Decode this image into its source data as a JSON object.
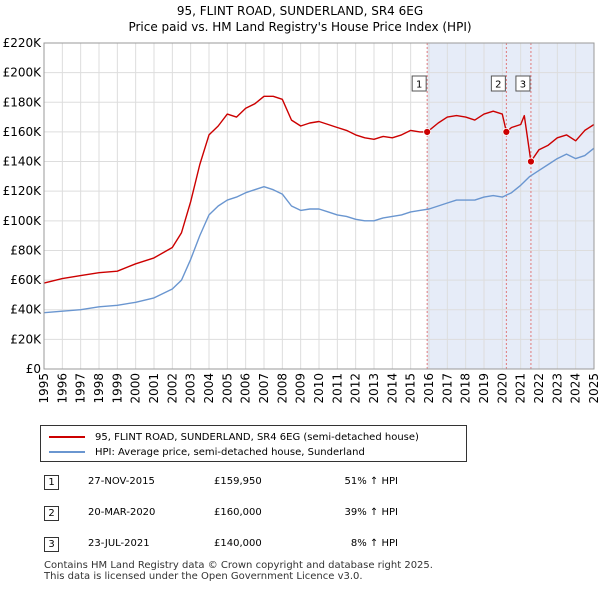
{
  "chart_data": {
    "type": "line",
    "title": "95, FLINT ROAD, SUNDERLAND, SR4 6EG",
    "subtitle": "Price paid vs. HM Land Registry's House Price Index (HPI)",
    "xlabel": "",
    "ylabel": "",
    "xlim": [
      1995,
      2025
    ],
    "ylim": [
      0,
      220000
    ],
    "y_ticks": [
      0,
      20000,
      40000,
      60000,
      80000,
      100000,
      120000,
      140000,
      160000,
      180000,
      200000,
      220000
    ],
    "y_tick_labels": [
      "£0",
      "£20K",
      "£40K",
      "£60K",
      "£80K",
      "£100K",
      "£120K",
      "£140K",
      "£160K",
      "£180K",
      "£200K",
      "£220K"
    ],
    "x_ticks": [
      1995,
      1996,
      1997,
      1998,
      1999,
      2000,
      2001,
      2002,
      2003,
      2004,
      2005,
      2006,
      2007,
      2008,
      2009,
      2010,
      2011,
      2012,
      2013,
      2014,
      2015,
      2016,
      2017,
      2018,
      2019,
      2020,
      2021,
      2022,
      2023,
      2024,
      2025
    ],
    "x_tick_labels": [
      "1995",
      "1996",
      "1997",
      "1998",
      "1999",
      "2000",
      "2001",
      "2002",
      "2003",
      "2004",
      "2005",
      "2006",
      "2007",
      "2008",
      "2009",
      "2010",
      "2011",
      "2012",
      "2013",
      "2014",
      "2015",
      "2016",
      "2017",
      "2018",
      "2019",
      "2020",
      "2021",
      "2022",
      "2023",
      "2024",
      "2025"
    ],
    "grid": true,
    "series": [
      {
        "name": "95, FLINT ROAD, SUNDERLAND, SR4 6EG (semi-detached house)",
        "color": "#cc0000",
        "x": [
          1995.0,
          1996.0,
          1997.0,
          1998.0,
          1999.0,
          2000.0,
          2001.0,
          2002.0,
          2002.5,
          2003.0,
          2003.5,
          2004.0,
          2004.5,
          2005.0,
          2005.5,
          2006.0,
          2006.5,
          2007.0,
          2007.5,
          2008.0,
          2008.5,
          2009.0,
          2009.5,
          2010.0,
          2010.5,
          2011.0,
          2011.5,
          2012.0,
          2012.5,
          2013.0,
          2013.5,
          2014.0,
          2014.5,
          2015.0,
          2015.5,
          2015.9,
          2016.5,
          2017.0,
          2017.5,
          2018.0,
          2018.5,
          2019.0,
          2019.5,
          2020.0,
          2020.22,
          2020.5,
          2021.0,
          2021.2,
          2021.56,
          2022.0,
          2022.5,
          2023.0,
          2023.5,
          2024.0,
          2024.5,
          2025.0
        ],
        "values": [
          58000,
          61000,
          63000,
          65000,
          66000,
          71000,
          75000,
          82000,
          92000,
          113000,
          138000,
          158000,
          164000,
          172000,
          170000,
          176000,
          179000,
          184000,
          184000,
          182000,
          168000,
          164000,
          166000,
          167000,
          165000,
          163000,
          161000,
          158000,
          156000,
          155000,
          157000,
          156000,
          158000,
          161000,
          160000,
          159950,
          166000,
          170000,
          171000,
          170000,
          168000,
          172000,
          174000,
          172000,
          160000,
          163000,
          165000,
          171000,
          140000,
          148000,
          151000,
          156000,
          158000,
          154000,
          161000,
          165000
        ]
      },
      {
        "name": "HPI: Average price, semi-detached house, Sunderland",
        "color": "#6a96d0",
        "x": [
          1995.0,
          1996.0,
          1997.0,
          1998.0,
          1999.0,
          2000.0,
          2001.0,
          2002.0,
          2002.5,
          2003.0,
          2003.5,
          2004.0,
          2004.5,
          2005.0,
          2005.5,
          2006.0,
          2006.5,
          2007.0,
          2007.5,
          2008.0,
          2008.5,
          2009.0,
          2009.5,
          2010.0,
          2010.5,
          2011.0,
          2011.5,
          2012.0,
          2012.5,
          2013.0,
          2013.5,
          2014.0,
          2014.5,
          2015.0,
          2015.5,
          2016.0,
          2016.5,
          2017.0,
          2017.5,
          2018.0,
          2018.5,
          2019.0,
          2019.5,
          2020.0,
          2020.5,
          2021.0,
          2021.5,
          2022.0,
          2022.5,
          2023.0,
          2023.5,
          2024.0,
          2024.5,
          2025.0
        ],
        "values": [
          38000,
          39000,
          40000,
          42000,
          43000,
          45000,
          48000,
          54000,
          60000,
          74000,
          90000,
          104000,
          110000,
          114000,
          116000,
          119000,
          121000,
          123000,
          121000,
          118000,
          110000,
          107000,
          108000,
          108000,
          106000,
          104000,
          103000,
          101000,
          100000,
          100000,
          102000,
          103000,
          104000,
          106000,
          107000,
          108000,
          110000,
          112000,
          114000,
          114000,
          114000,
          116000,
          117000,
          116000,
          119000,
          124000,
          130000,
          134000,
          138000,
          142000,
          145000,
          142000,
          144000,
          149000
        ]
      }
    ],
    "sales": [
      {
        "label": "1",
        "x": 2015.9,
        "y": 159950,
        "marker_color": "#cc0000"
      },
      {
        "label": "2",
        "x": 2020.22,
        "y": 160000,
        "marker_color": "#cc0000"
      },
      {
        "label": "3",
        "x": 2021.56,
        "y": 140000,
        "marker_color": "#cc0000"
      }
    ],
    "band_color": "#e6ecf8",
    "vline_color": "#e07a7a"
  },
  "legend": {
    "property": "95, FLINT ROAD, SUNDERLAND, SR4 6EG (semi-detached house)",
    "hpi": "HPI: Average price, semi-detached house, Sunderland"
  },
  "transactions": [
    {
      "num": "1",
      "date": "27-NOV-2015",
      "price": "£159,950",
      "hpi": "51% ↑ HPI"
    },
    {
      "num": "2",
      "date": "20-MAR-2020",
      "price": "£160,000",
      "hpi": "39% ↑ HPI"
    },
    {
      "num": "3",
      "date": "23-JUL-2021",
      "price": "£140,000",
      "hpi": "8% ↑ HPI"
    }
  ],
  "footer": {
    "line1": "Contains HM Land Registry data © Crown copyright and database right 2025.",
    "line2": "This data is licensed under the Open Government Licence v3.0."
  }
}
